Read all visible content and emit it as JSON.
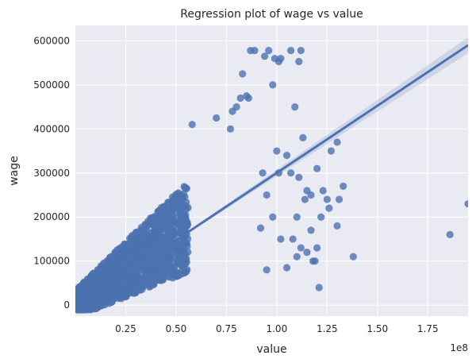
{
  "chart_data": {
    "type": "scatter",
    "title": "Regression plot of wage vs value",
    "xlabel": "value",
    "ylabel": "wage",
    "x_scale_label": "1e8",
    "xlim": [
      0,
      1.95
    ],
    "ylim": [
      -25000,
      635000
    ],
    "grid": true,
    "x_ticks": [
      0.25,
      0.5,
      0.75,
      1.0,
      1.25,
      1.5,
      1.75
    ],
    "x_tick_labels": [
      "0.25",
      "0.50",
      "0.75",
      "1.00",
      "1.25",
      "1.50",
      "1.75"
    ],
    "y_ticks": [
      0,
      100000,
      200000,
      300000,
      400000,
      500000,
      600000
    ],
    "y_tick_labels": [
      "0",
      "100000",
      "200000",
      "300000",
      "400000",
      "500000",
      "600000"
    ],
    "regression_line": {
      "x": [
        0,
        1.95
      ],
      "y": [
        -5000,
        590000
      ]
    },
    "outlier_points": {
      "x": [
        0.87,
        0.89,
        0.94,
        0.96,
        0.99,
        1.01,
        1.02,
        1.07,
        1.11,
        1.12,
        0.83,
        0.85,
        1.09,
        0.98,
        0.86,
        0.8,
        0.82,
        0.78,
        0.58,
        0.7,
        0.77,
        1.13,
        1.05,
        1.07,
        1.11,
        1.27,
        1.3,
        1.33,
        1.31,
        1.2,
        1.23,
        1.14,
        1.17,
        1.25,
        1.22,
        1.26,
        1.3,
        1.0,
        1.01,
        0.95,
        0.93,
        1.1,
        1.15,
        1.95,
        1.86,
        1.38,
        1.15,
        1.1,
        1.18,
        1.2,
        1.08,
        1.17,
        1.12,
        1.02,
        0.92,
        0.95,
        1.05,
        1.21,
        1.19,
        0.98
      ],
      "y": [
        578000,
        578000,
        565000,
        578000,
        560000,
        553000,
        560000,
        578000,
        553000,
        578000,
        525000,
        475000,
        450000,
        500000,
        470000,
        450000,
        470000,
        440000,
        410000,
        425000,
        400000,
        380000,
        340000,
        300000,
        290000,
        350000,
        370000,
        270000,
        240000,
        310000,
        260000,
        240000,
        250000,
        240000,
        200000,
        220000,
        180000,
        350000,
        300000,
        250000,
        300000,
        200000,
        260000,
        230000,
        160000,
        110000,
        120000,
        110000,
        100000,
        130000,
        150000,
        170000,
        130000,
        150000,
        175000,
        80000,
        85000,
        40000,
        100000,
        200000
      ]
    },
    "cluster_style": {
      "count": 1800,
      "seed": 7
    },
    "colors": {
      "background": "#eaeaf2",
      "grid": "#ffffff",
      "points": "#4c72b0",
      "line": "#4c72b0",
      "band": "#4c72b0"
    }
  }
}
